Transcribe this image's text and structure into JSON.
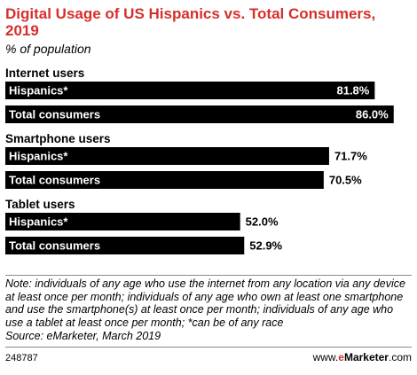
{
  "title": "Digital Usage of US Hispanics vs. Total Consumers, 2019",
  "subtitle": "% of population",
  "chart_data": {
    "type": "bar",
    "orientation": "horizontal",
    "xlim": [
      0,
      100
    ],
    "value_suffix": "%",
    "groups": [
      {
        "label": "Internet users",
        "bars": [
          {
            "label": "Hispanics*",
            "value": 81.8,
            "value_label": "81.8%"
          },
          {
            "label": "Total consumers",
            "value": 86.0,
            "value_label": "86.0%"
          }
        ]
      },
      {
        "label": "Smartphone users",
        "bars": [
          {
            "label": "Hispanics*",
            "value": 71.7,
            "value_label": "71.7%"
          },
          {
            "label": "Total consumers",
            "value": 70.5,
            "value_label": "70.5%"
          }
        ]
      },
      {
        "label": "Tablet users",
        "bars": [
          {
            "label": "Hispanics*",
            "value": 52.0,
            "value_label": "52.0%"
          },
          {
            "label": "Total consumers",
            "value": 52.9,
            "value_label": "52.9%"
          }
        ]
      }
    ],
    "bar_color": "#000000"
  },
  "note": "Note: individuals of any age who use the internet from any location via any device at least once per month; individuals of any age who own at least one smartphone and use the smartphone(s) at least once per month; individuals of any age who use a tablet at least once per month; *can be of any race",
  "source": "Source: eMarketer, March 2019",
  "chart_id": "248787",
  "brand": {
    "prefix": "www.",
    "e": "e",
    "name": "Marketer",
    "suffix": ".com"
  },
  "colors": {
    "title": "#d5302b",
    "bar": "#000000",
    "bar_text": "#ffffff"
  }
}
